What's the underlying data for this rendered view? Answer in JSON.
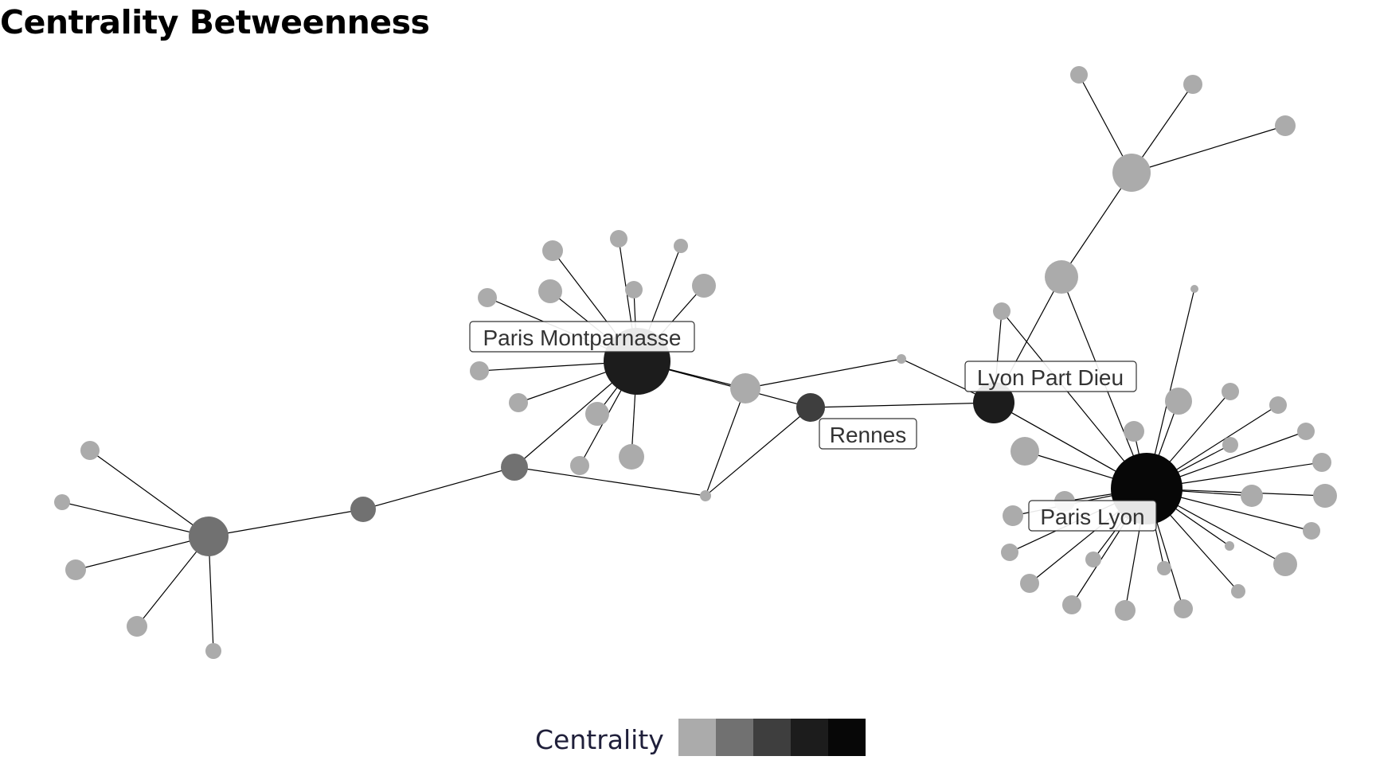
{
  "title": "Centrality Betweenness",
  "legend": {
    "title": "Centrality",
    "swatches": [
      "#ababab",
      "#717171",
      "#3e3e3e",
      "#1c1c1c",
      "#070707"
    ]
  },
  "labels": {
    "paris_montparnasse": "Paris Montparnasse",
    "lyon_part_dieu": "Lyon Part Dieu",
    "rennes": "Rennes",
    "paris_lyon": "Paris Lyon"
  },
  "colors": {
    "low": "#ababab",
    "mid": "#717171",
    "midhigh": "#3e3e3e",
    "high": "#1c1c1c",
    "top": "#070707",
    "edge": "#000000"
  },
  "graph": {
    "nodes": [
      {
        "id": "pm",
        "level": 3,
        "size": 4
      },
      {
        "id": "pl",
        "level": 4,
        "size": 5
      },
      {
        "id": "lpd",
        "level": 3,
        "size": 2.5
      },
      {
        "id": "ren",
        "level": 2,
        "size": 1.5
      },
      {
        "id": "w1",
        "level": 1,
        "size": 2.5
      },
      {
        "id": "w2",
        "level": 1,
        "size": 1.5
      },
      {
        "id": "w3",
        "level": 1,
        "size": 1.5
      },
      {
        "id": "mid1",
        "level": 0,
        "size": 1.7
      },
      {
        "id": "sm1",
        "level": 0,
        "size": 0.6
      },
      {
        "id": "sm2",
        "level": 0,
        "size": 0.6
      },
      {
        "id": "ne1",
        "level": 0,
        "size": 2.3
      },
      {
        "id": "ne2",
        "level": 0,
        "size": 2.3
      },
      {
        "id": "ne3",
        "level": 0,
        "size": 1.3
      },
      {
        "id": "ne4",
        "level": 0,
        "size": 1.3
      },
      {
        "id": "ne5",
        "level": 0,
        "size": 1.3
      },
      {
        "id": "ne6",
        "level": 0,
        "size": 1.1
      },
      {
        "id": "ne7",
        "level": 0,
        "size": 0.5
      }
    ],
    "edges": [
      [
        "w1",
        "w2"
      ],
      [
        "w2",
        "w3"
      ],
      [
        "w3",
        "pm"
      ],
      [
        "w3",
        "sm2"
      ],
      [
        "pm",
        "mid1"
      ],
      [
        "pm",
        "ren"
      ],
      [
        "mid1",
        "sm1"
      ],
      [
        "mid1",
        "sm2"
      ],
      [
        "sm2",
        "ren"
      ],
      [
        "sm1",
        "lpd"
      ],
      [
        "ren",
        "lpd"
      ],
      [
        "lpd",
        "pl"
      ],
      [
        "lpd",
        "ne1"
      ],
      [
        "ne1",
        "ne2"
      ],
      [
        "ne2",
        "ne3"
      ],
      [
        "ne2",
        "ne4"
      ],
      [
        "ne2",
        "ne5"
      ],
      [
        "ne6",
        "lpd"
      ],
      [
        "ne6",
        "pl"
      ],
      [
        "ne7",
        "pl"
      ],
      [
        "ne1",
        "pl"
      ]
    ]
  }
}
